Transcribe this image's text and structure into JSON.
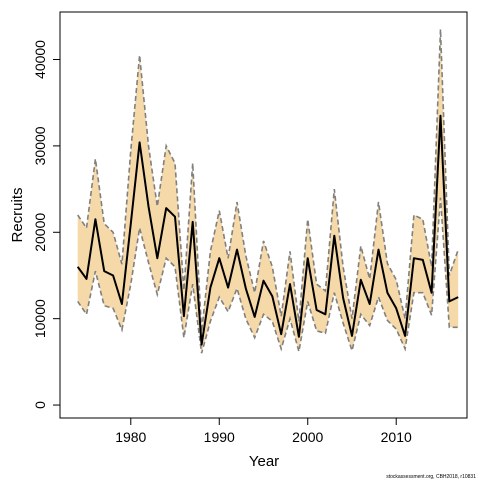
{
  "chart_data": {
    "type": "line",
    "xlabel": "Year",
    "ylabel": "Recruits",
    "xlim": [
      1972,
      2018
    ],
    "ylim": [
      -1500,
      45500
    ],
    "x_ticks": [
      1980,
      1990,
      2000,
      2010
    ],
    "y_ticks": [
      0,
      10000,
      20000,
      30000,
      40000
    ],
    "grid": false,
    "band_color": "#F5D9A8",
    "bound_line_color": "#808080",
    "line_color": "#000000",
    "series": [
      {
        "x": [
          1974,
          1975,
          1976,
          1977,
          1978,
          1979,
          1980,
          1981,
          1982,
          1983,
          1984,
          1985,
          1986,
          1987,
          1988,
          1989,
          1990,
          1991,
          1992,
          1993,
          1994,
          1995,
          1996,
          1997,
          1998,
          1999,
          2000,
          2001,
          2002,
          2003,
          2004,
          2005,
          2006,
          2007,
          2008,
          2009,
          2010,
          2011,
          2012,
          2013,
          2014,
          2015,
          2016,
          2017
        ],
        "values": [
          16000,
          14600,
          21500,
          15500,
          15000,
          11700,
          21000,
          30400,
          23000,
          17000,
          22800,
          21800,
          10300,
          21200,
          7000,
          13600,
          17000,
          13600,
          18000,
          13500,
          10200,
          14400,
          12600,
          8200,
          14000,
          7900,
          17000,
          11000,
          10500,
          19600,
          12400,
          8000,
          14500,
          11700,
          18000,
          13000,
          11200,
          8000,
          17000,
          16800,
          13000,
          33500,
          12000,
          12500
        ],
        "lower": [
          12000,
          10500,
          15500,
          11500,
          11200,
          8700,
          14000,
          20500,
          16500,
          12800,
          17000,
          16000,
          7800,
          14000,
          6000,
          9700,
          12500,
          10800,
          13500,
          10000,
          7800,
          10500,
          9700,
          6500,
          10000,
          6200,
          12000,
          8600,
          8300,
          13000,
          9500,
          6300,
          10500,
          9200,
          12500,
          9800,
          8800,
          6500,
          13000,
          13000,
          10400,
          24000,
          9000,
          9000
        ],
        "upper": [
          22000,
          20500,
          28500,
          21000,
          20000,
          16300,
          29500,
          40500,
          30000,
          23000,
          30000,
          28000,
          13300,
          28000,
          8500,
          17800,
          22500,
          17000,
          23500,
          17300,
          13000,
          19000,
          16000,
          10300,
          17800,
          9700,
          21500,
          14000,
          13200,
          25000,
          16000,
          10000,
          18400,
          14600,
          23500,
          16400,
          14500,
          10000,
          22000,
          21500,
          16000,
          43500,
          15000,
          18000
        ]
      }
    ]
  },
  "credit": "stockassessment.org, CBH2018, r10831"
}
